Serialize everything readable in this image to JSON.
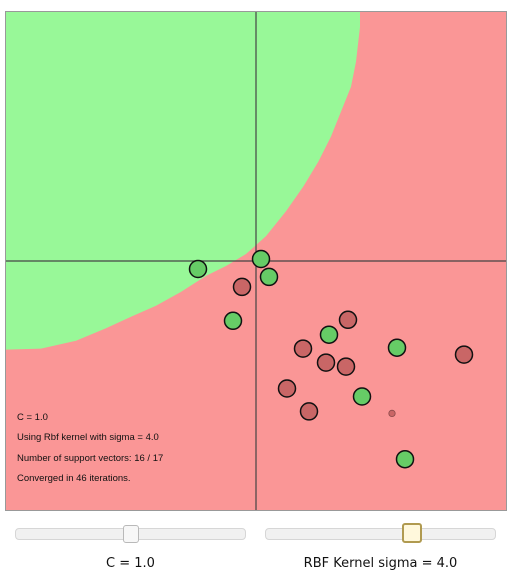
{
  "info": {
    "c_line": "C = 1.0",
    "kernel_line": "Using Rbf kernel with sigma = 4.0",
    "sv_line": "Number of support vectors: 16 / 17",
    "iter_line": "Converged in 46 iterations."
  },
  "controls": {
    "c_slider": {
      "label": "C = 1.0",
      "value_fraction": 0.5
    },
    "sigma_slider": {
      "label": "RBF Kernel sigma = 4.0",
      "value_fraction": 0.65
    }
  },
  "colors": {
    "positive_region": "#98f898",
    "negative_region": "#fa9696",
    "positive_point": "#66cc66",
    "negative_point": "#c96666",
    "axis": "#444444"
  },
  "chart_data": {
    "type": "scatter",
    "xlim": [
      -5,
      5
    ],
    "ylim": [
      -5,
      5
    ],
    "axes_at_origin": true,
    "series": [
      {
        "class": "positive",
        "points": [
          {
            "x": -1.16,
            "y": -0.16,
            "support": true
          },
          {
            "x": 0.1,
            "y": 0.04,
            "support": true
          },
          {
            "x": 0.26,
            "y": -0.32,
            "support": true
          },
          {
            "x": -0.46,
            "y": -1.2,
            "support": true
          },
          {
            "x": 1.46,
            "y": -1.48,
            "support": true
          },
          {
            "x": 2.82,
            "y": -1.74,
            "support": true
          },
          {
            "x": 2.12,
            "y": -2.72,
            "support": true
          },
          {
            "x": 2.98,
            "y": -3.98,
            "support": true
          }
        ]
      },
      {
        "class": "negative",
        "points": [
          {
            "x": -0.28,
            "y": -0.52,
            "support": true
          },
          {
            "x": 1.84,
            "y": -1.18,
            "support": true
          },
          {
            "x": 0.94,
            "y": -1.76,
            "support": true
          },
          {
            "x": 1.4,
            "y": -2.04,
            "support": true
          },
          {
            "x": 1.8,
            "y": -2.12,
            "support": true
          },
          {
            "x": 4.16,
            "y": -1.88,
            "support": true
          },
          {
            "x": 0.62,
            "y": -2.56,
            "support": true
          },
          {
            "x": 1.06,
            "y": -3.02,
            "support": true
          },
          {
            "x": 2.72,
            "y": -3.06,
            "support": false
          }
        ]
      }
    ],
    "decision_boundary": [
      {
        "x": 2.08,
        "y": 4.7
      },
      {
        "x": 2.0,
        "y": 4.0
      },
      {
        "x": 1.9,
        "y": 3.5
      },
      {
        "x": 1.7,
        "y": 3.0
      },
      {
        "x": 1.5,
        "y": 2.5
      },
      {
        "x": 1.25,
        "y": 2.0
      },
      {
        "x": 0.95,
        "y": 1.5
      },
      {
        "x": 0.6,
        "y": 1.0
      },
      {
        "x": 0.2,
        "y": 0.5
      },
      {
        "x": -0.2,
        "y": 0.14
      },
      {
        "x": -0.6,
        "y": -0.1
      },
      {
        "x": -1.0,
        "y": -0.3
      },
      {
        "x": -1.5,
        "y": -0.62
      },
      {
        "x": -2.0,
        "y": -0.9
      },
      {
        "x": -2.5,
        "y": -1.12
      },
      {
        "x": -3.0,
        "y": -1.35
      },
      {
        "x": -3.6,
        "y": -1.6
      },
      {
        "x": -4.3,
        "y": -1.76
      },
      {
        "x": -5.0,
        "y": -1.78
      }
    ]
  }
}
